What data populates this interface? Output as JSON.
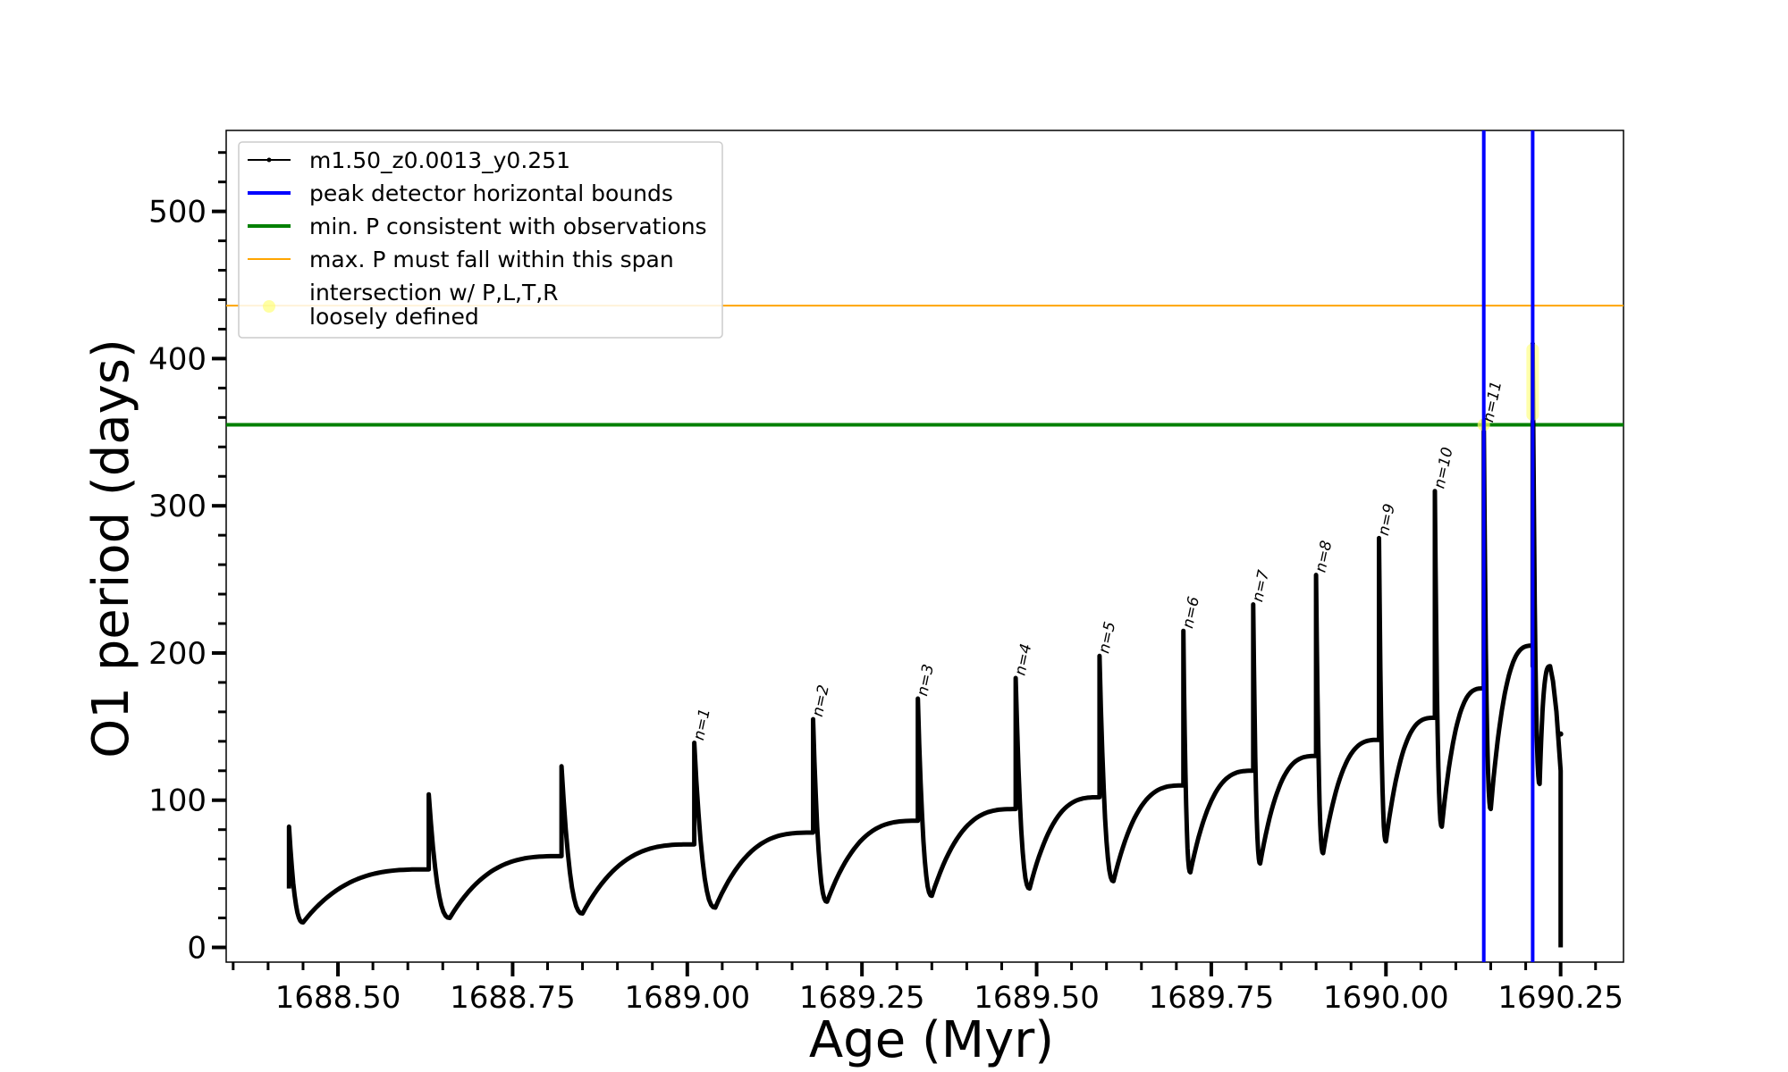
{
  "chart_data": {
    "type": "line",
    "xlabel": "Age (Myr)",
    "ylabel": "O1 period (days)",
    "xlim": [
      1688.34,
      1690.34
    ],
    "ylim": [
      -10,
      555
    ],
    "x_ticks": [
      1688.5,
      1688.75,
      1689.0,
      1689.25,
      1689.5,
      1689.75,
      1690.0,
      1690.25
    ],
    "x_tick_labels": [
      "1688.50",
      "1688.75",
      "1689.00",
      "1689.25",
      "1689.50",
      "1689.75",
      "1690.00",
      "1690.25"
    ],
    "x_minor_step": 0.05,
    "y_ticks": [
      0,
      100,
      200,
      300,
      400,
      500
    ],
    "y_tick_labels": [
      "0",
      "100",
      "200",
      "300",
      "400",
      "500"
    ],
    "y_minor_step": 20,
    "grid": false,
    "legend_placement": "top-left",
    "series": [
      {
        "name": "m1.50_z0.0013_y0.251",
        "color": "#000000",
        "cycles": [
          {
            "x0": 1688.43,
            "spike": 82,
            "minx": 1688.45,
            "min": 17,
            "x1": 1688.63,
            "end": 53
          },
          {
            "x0": 1688.63,
            "spike": 104,
            "minx": 1688.66,
            "min": 20,
            "x1": 1688.82,
            "end": 62
          },
          {
            "x0": 1688.82,
            "spike": 123,
            "minx": 1688.85,
            "min": 23,
            "x1": 1689.01,
            "end": 70
          },
          {
            "x0": 1689.01,
            "spike": 139,
            "minx": 1689.04,
            "min": 27,
            "x1": 1689.18,
            "end": 78
          },
          {
            "x0": 1689.18,
            "spike": 155,
            "minx": 1689.2,
            "min": 31,
            "x1": 1689.33,
            "end": 86
          },
          {
            "x0": 1689.33,
            "spike": 169,
            "minx": 1689.35,
            "min": 35,
            "x1": 1689.47,
            "end": 94
          },
          {
            "x0": 1689.47,
            "spike": 183,
            "minx": 1689.49,
            "min": 40,
            "x1": 1689.59,
            "end": 102
          },
          {
            "x0": 1689.59,
            "spike": 198,
            "minx": 1689.61,
            "min": 45,
            "x1": 1689.71,
            "end": 110
          },
          {
            "x0": 1689.71,
            "spike": 215,
            "minx": 1689.72,
            "min": 51,
            "x1": 1689.81,
            "end": 120
          },
          {
            "x0": 1689.81,
            "spike": 233,
            "minx": 1689.82,
            "min": 57,
            "x1": 1689.9,
            "end": 130
          },
          {
            "x0": 1689.9,
            "spike": 253,
            "minx": 1689.91,
            "min": 64,
            "x1": 1689.99,
            "end": 141
          },
          {
            "x0": 1689.99,
            "spike": 278,
            "minx": 1690.0,
            "min": 72,
            "x1": 1690.07,
            "end": 156
          },
          {
            "x0": 1690.07,
            "spike": 310,
            "minx": 1690.08,
            "min": 82,
            "x1": 1690.14,
            "end": 176
          },
          {
            "x0": 1690.14,
            "spike": 358,
            "minx": 1690.15,
            "min": 94,
            "x1": 1690.21,
            "end": 205
          },
          {
            "x0": 1690.21,
            "spike": 410,
            "minx": 1690.22,
            "min": 111,
            "x1": 1690.235,
            "end": 191
          }
        ],
        "tail": {
          "x_peak": 1690.235,
          "y_peak": 191,
          "x_end": 1690.25,
          "y_end": 0,
          "marker_y": 145
        }
      }
    ],
    "peak_labels": [
      {
        "text": "n=1",
        "x": 1689.01,
        "y": 139
      },
      {
        "text": "n=2",
        "x": 1689.18,
        "y": 155
      },
      {
        "text": "n=3",
        "x": 1689.33,
        "y": 169
      },
      {
        "text": "n=4",
        "x": 1689.47,
        "y": 183
      },
      {
        "text": "n=5",
        "x": 1689.59,
        "y": 198
      },
      {
        "text": "n=6",
        "x": 1689.71,
        "y": 215
      },
      {
        "text": "n=7",
        "x": 1689.81,
        "y": 233
      },
      {
        "text": "n=8",
        "x": 1689.9,
        "y": 253
      },
      {
        "text": "n=9",
        "x": 1689.99,
        "y": 278
      },
      {
        "text": "n=10",
        "x": 1690.07,
        "y": 310
      },
      {
        "text": "n=11",
        "x": 1690.14,
        "y": 355
      }
    ],
    "vertical_lines": [
      {
        "x": 1690.14,
        "color": "#0000ff"
      },
      {
        "x": 1690.21,
        "color": "#0000ff"
      }
    ],
    "hline_min_p": {
      "y": 355,
      "color": "#008000"
    },
    "hline_max_p": {
      "y": 436,
      "color": "#ffa500"
    },
    "intersections": [
      {
        "x": 1690.14,
        "y": 355
      },
      {
        "x": 1690.21,
        "y_from": 358,
        "y_to": 410
      }
    ],
    "intersection_color": "#ffff66",
    "legend": [
      {
        "key": "series",
        "label": "m1.50_z0.0013_y0.251",
        "color": "#000000"
      },
      {
        "key": "blue",
        "label": "peak detector horizontal bounds",
        "color": "#0000ff"
      },
      {
        "key": "green",
        "label": "min. P consistent with observations",
        "color": "#008000"
      },
      {
        "key": "orange",
        "label": "max. P must fall within this span",
        "color": "#ffa500"
      },
      {
        "key": "yellow",
        "label_line1": "intersection w/ P,L,T,R",
        "label_line2": "loosely defined",
        "color": "#ffff66"
      }
    ]
  }
}
